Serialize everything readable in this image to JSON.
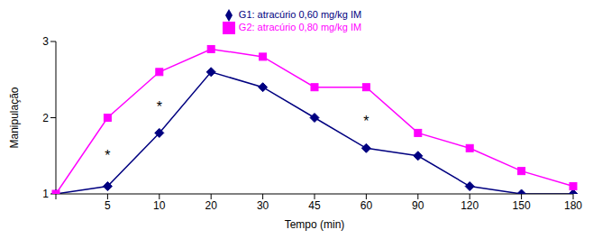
{
  "chart_data": {
    "type": "line",
    "x_label": "Tempo (min)",
    "y_label": "Manipulação",
    "categories": [
      null,
      "5",
      "10",
      "20",
      "30",
      "45",
      "60",
      "90",
      "120",
      "150",
      "180"
    ],
    "series": [
      {
        "name": "G1: atracúrio 0,60 mg/kg IM",
        "color": "#000080",
        "marker": "diamond",
        "values": [
          1,
          1.1,
          1.8,
          2.6,
          2.4,
          2.0,
          1.6,
          1.5,
          1.1,
          1.0,
          1.0
        ]
      },
      {
        "name": "G2: atracúrio 0,80 mg/kg IM",
        "color": "#ff00ff",
        "marker": "square",
        "values": [
          1,
          2.0,
          2.6,
          2.9,
          2.8,
          2.4,
          2.4,
          1.8,
          1.6,
          1.3,
          1.1
        ]
      }
    ],
    "ylim": [
      1,
      3
    ],
    "yticks": [
      1,
      2,
      3
    ],
    "grid": false,
    "legend": "top",
    "annotations": [
      {
        "text": "*",
        "category": "5",
        "y": 1.5
      },
      {
        "text": "*",
        "category": "10",
        "y": 2.15
      },
      {
        "text": "*",
        "category": "60",
        "y": 1.95
      }
    ]
  }
}
